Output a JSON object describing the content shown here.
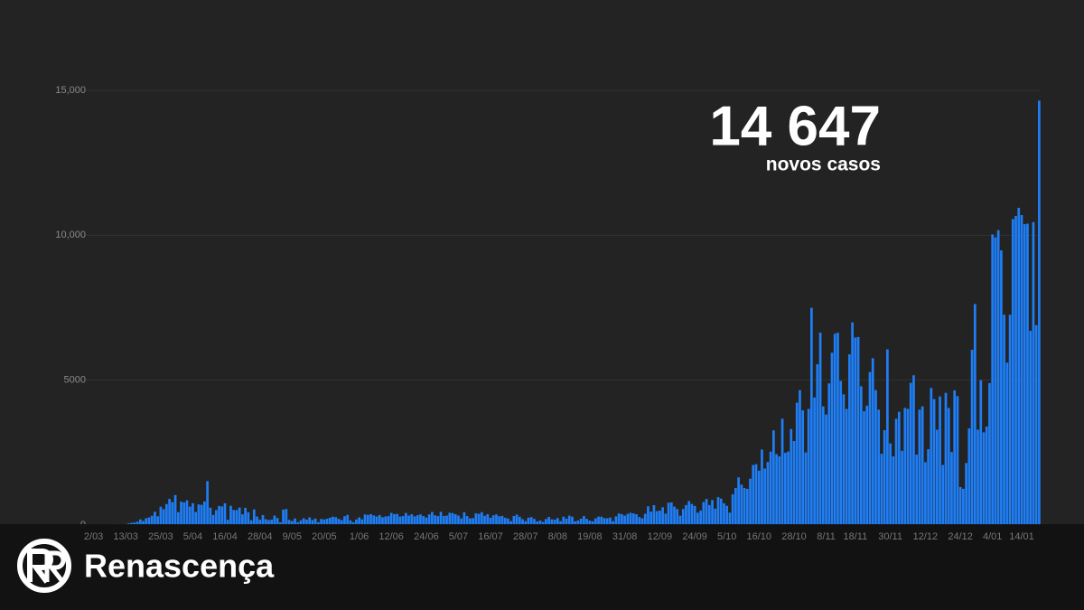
{
  "chart_data": {
    "type": "bar",
    "categories": [
      "2/03",
      null,
      null,
      null,
      null,
      null,
      null,
      null,
      null,
      null,
      null,
      "13/03",
      null,
      null,
      null,
      null,
      null,
      null,
      null,
      null,
      null,
      null,
      null,
      "25/03",
      null,
      null,
      null,
      null,
      null,
      null,
      null,
      null,
      null,
      null,
      "5/04",
      null,
      null,
      null,
      null,
      null,
      null,
      null,
      null,
      null,
      null,
      "16/04",
      null,
      null,
      null,
      null,
      null,
      null,
      null,
      null,
      null,
      null,
      null,
      "28/04",
      null,
      null,
      null,
      null,
      null,
      null,
      null,
      null,
      null,
      null,
      "9/05",
      null,
      null,
      null,
      null,
      null,
      null,
      null,
      null,
      null,
      null,
      "20/05",
      null,
      null,
      null,
      null,
      null,
      null,
      null,
      null,
      null,
      null,
      null,
      "1/06",
      null,
      null,
      null,
      null,
      null,
      null,
      null,
      null,
      null,
      null,
      "12/06",
      null,
      null,
      null,
      null,
      null,
      null,
      null,
      null,
      null,
      null,
      null,
      "24/06",
      null,
      null,
      null,
      null,
      null,
      null,
      null,
      null,
      null,
      null,
      "5/07",
      null,
      null,
      null,
      null,
      null,
      null,
      null,
      null,
      null,
      null,
      "16/07",
      null,
      null,
      null,
      null,
      null,
      null,
      null,
      null,
      null,
      null,
      null,
      "28/07",
      null,
      null,
      null,
      null,
      null,
      null,
      null,
      null,
      null,
      null,
      "8/08",
      null,
      null,
      null,
      null,
      null,
      null,
      null,
      null,
      null,
      null,
      "19/08",
      null,
      null,
      null,
      null,
      null,
      null,
      null,
      null,
      null,
      null,
      null,
      "31/08",
      null,
      null,
      null,
      null,
      null,
      null,
      null,
      null,
      null,
      null,
      null,
      "12/09",
      null,
      null,
      null,
      null,
      null,
      null,
      null,
      null,
      null,
      null,
      null,
      "24/09",
      null,
      null,
      null,
      null,
      null,
      null,
      null,
      null,
      null,
      null,
      "5/10",
      null,
      null,
      null,
      null,
      null,
      null,
      null,
      null,
      null,
      null,
      "16/10",
      null,
      null,
      null,
      null,
      null,
      null,
      null,
      null,
      null,
      null,
      null,
      "28/10",
      null,
      null,
      null,
      null,
      null,
      null,
      null,
      null,
      null,
      null,
      "8/11",
      null,
      null,
      null,
      null,
      null,
      null,
      null,
      null,
      null,
      "18/11",
      null,
      null,
      null,
      null,
      null,
      null,
      null,
      null,
      null,
      null,
      null,
      "30/11",
      null,
      null,
      null,
      null,
      null,
      null,
      null,
      null,
      null,
      null,
      null,
      "12/12",
      null,
      null,
      null,
      null,
      null,
      null,
      null,
      null,
      null,
      null,
      null,
      "24/12",
      null,
      null,
      null,
      null,
      null,
      null,
      null,
      null,
      null,
      null,
      "4/01",
      null,
      null,
      null,
      null,
      null,
      null,
      null,
      null,
      null,
      "14/01",
      null,
      null,
      null,
      null,
      null,
      null
    ],
    "values": [
      2,
      0,
      2,
      2,
      4,
      4,
      8,
      9,
      11,
      18,
      19,
      34,
      57,
      76,
      86,
      117,
      194,
      143,
      235,
      260,
      320,
      460,
      302,
      633,
      549,
      724,
      902,
      792,
      1035,
      446,
      808,
      783,
      852,
      638,
      754,
      452,
      712,
      699,
      815,
      1516,
      598,
      349,
      514,
      657,
      643,
      750,
      181,
      663,
      521,
      516,
      603,
      371,
      595,
      444,
      163,
      540,
      295,
      183,
      345,
      204,
      173,
      187,
      326,
      242,
      92,
      533,
      553,
      178,
      138,
      226,
      98,
      163,
      234,
      187,
      264,
      173,
      226,
      98,
      211,
      193,
      219,
      252,
      288,
      271,
      213,
      173,
      304,
      350,
      162,
      97,
      193,
      266,
      200,
      366,
      350,
      377,
      331,
      295,
      346,
      270,
      294,
      309,
      421,
      377,
      382,
      294,
      311,
      417,
      328,
      375,
      300,
      339,
      367,
      311,
      259,
      367,
      451,
      336,
      311,
      457,
      313,
      328,
      423,
      413,
      374,
      328,
      229,
      443,
      311,
      232,
      238,
      402,
      387,
      443,
      319,
      375,
      254,
      338,
      366,
      303,
      315,
      252,
      226,
      135,
      313,
      358,
      286,
      203,
      135,
      256,
      276,
      211,
      124,
      155,
      106,
      209,
      278,
      196,
      186,
      242,
      134,
      290,
      221,
      325,
      290,
      130,
      158,
      219,
      312,
      213,
      154,
      129,
      230,
      292,
      288,
      238,
      235,
      259,
      136,
      300,
      401,
      374,
      325,
      390,
      423,
      401,
      374,
      277,
      234,
      389,
      646,
      460,
      687,
      481,
      497,
      613,
      395,
      770,
      780,
      638,
      552,
      323,
      552,
      691,
      828,
      729,
      658,
      425,
      502,
      794,
      899,
      691,
      865,
      566,
      964,
      911,
      753,
      663,
      427,
      1063,
      1278,
      1646,
      1394,
      1278,
      1249,
      1601,
      2072,
      2101,
      1876,
      2608,
      1949,
      2173,
      2535,
      3270,
      2447,
      2371,
      3669,
      2493,
      2539,
      3315,
      2900,
      4224,
      4656,
      3960,
      2506,
      4007,
      7497,
      4402,
      5550,
      6640,
      4096,
      3815,
      4888,
      5947,
      6603,
      6637,
      4973,
      4510,
      4007,
      5891,
      6994,
      6472,
      6489,
      4788,
      3927,
      4122,
      5279,
      5756,
      4656,
      3982,
      2461,
      3274,
      6063,
      2818,
      2372,
      3669,
      3908,
      2562,
      4044,
      4010,
      4911,
      5168,
      2430,
      3982,
      4096,
      2169,
      2617,
      4728,
      4347,
      3290,
      4438,
      2072,
      4562,
      4040,
      2520,
      4650,
      4450,
      1314,
      1252,
      2142,
      3336,
      6049,
      7627,
      3290,
      5000,
      3200,
      3400,
      4900,
      10027,
      9927,
      10176,
      9478,
      7259,
      5604,
      7259,
      10556,
      10663,
      10947,
      10698,
      10385,
      10400,
      6702,
      10455,
      6900,
      14647
    ],
    "color": "#1f7ef5",
    "ylim": [
      0,
      15000
    ],
    "yticks": [
      0,
      5000,
      {
        "value": 10000,
        "label": "10,000"
      },
      {
        "value": 15000,
        "label": "15,000"
      }
    ],
    "grid": true,
    "annotation": {
      "number": "14 647",
      "text": "novos casos"
    }
  },
  "footer": {
    "brand": "Renascença"
  }
}
